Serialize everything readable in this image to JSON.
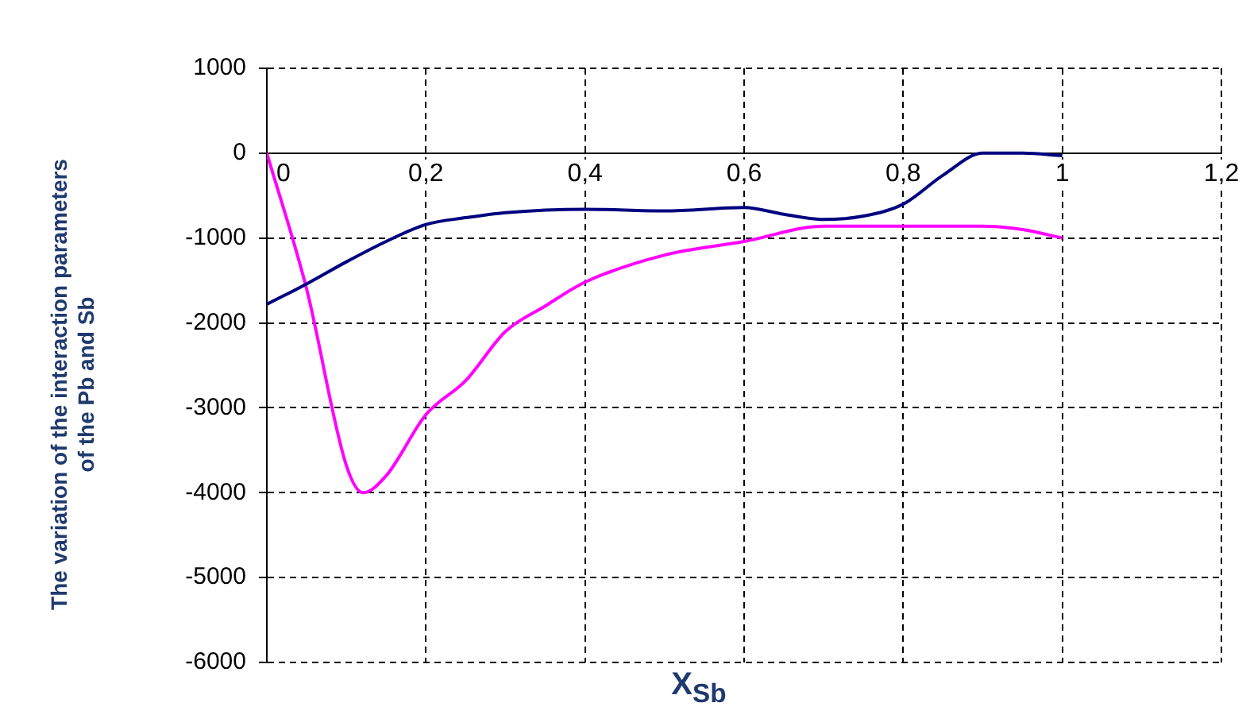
{
  "chart_data": {
    "type": "line",
    "xlabel": "X$_{Sb}$",
    "ylabel": "The variation  of the interaction parameters of the Pb  and Sb",
    "xlim": [
      0,
      1.2
    ],
    "xticks": [
      0,
      {
        "value": 0.2,
        "label": "0,2"
      },
      {
        "value": 0.4,
        "label": "0,4"
      },
      {
        "value": 0.6,
        "label": "0,6"
      },
      {
        "value": 0.8,
        "label": "0,8"
      },
      1,
      {
        "value": 1.2,
        "label": "1,2"
      }
    ],
    "ylim": [
      -6000,
      1000
    ],
    "yticks": [
      -6000,
      -5000,
      -4000,
      -3000,
      -2000,
      -1000,
      0,
      1000
    ],
    "grid": true,
    "legend": false,
    "marker": "none",
    "line_style": "solid",
    "series": [
      {
        "color": "#000080",
        "x": [
          0,
          0.05,
          0.1,
          0.15,
          0.2,
          0.25,
          0.3,
          0.4,
          0.5,
          0.6,
          0.65,
          0.7,
          0.75,
          0.8,
          0.85,
          0.9,
          0.95,
          1
        ],
        "values": [
          -1780,
          -1540,
          -1280,
          -1040,
          -840,
          -760,
          -700,
          -660,
          -680,
          -640,
          -720,
          -780,
          -740,
          -600,
          -260,
          0,
          0,
          -30
        ]
      },
      {
        "color": "#ff00ff",
        "x": [
          0,
          0.05,
          0.1,
          0.121,
          0.15,
          0.2,
          0.25,
          0.3,
          0.35,
          0.4,
          0.5,
          0.6,
          0.7,
          0.8,
          0.9,
          0.95,
          1
        ],
        "values": [
          0,
          -1600,
          -3680,
          -4000,
          -3800,
          -3080,
          -2680,
          -2100,
          -1800,
          -1520,
          -1200,
          -1040,
          -860,
          -860,
          -860,
          -900,
          -1000
        ]
      }
    ]
  }
}
